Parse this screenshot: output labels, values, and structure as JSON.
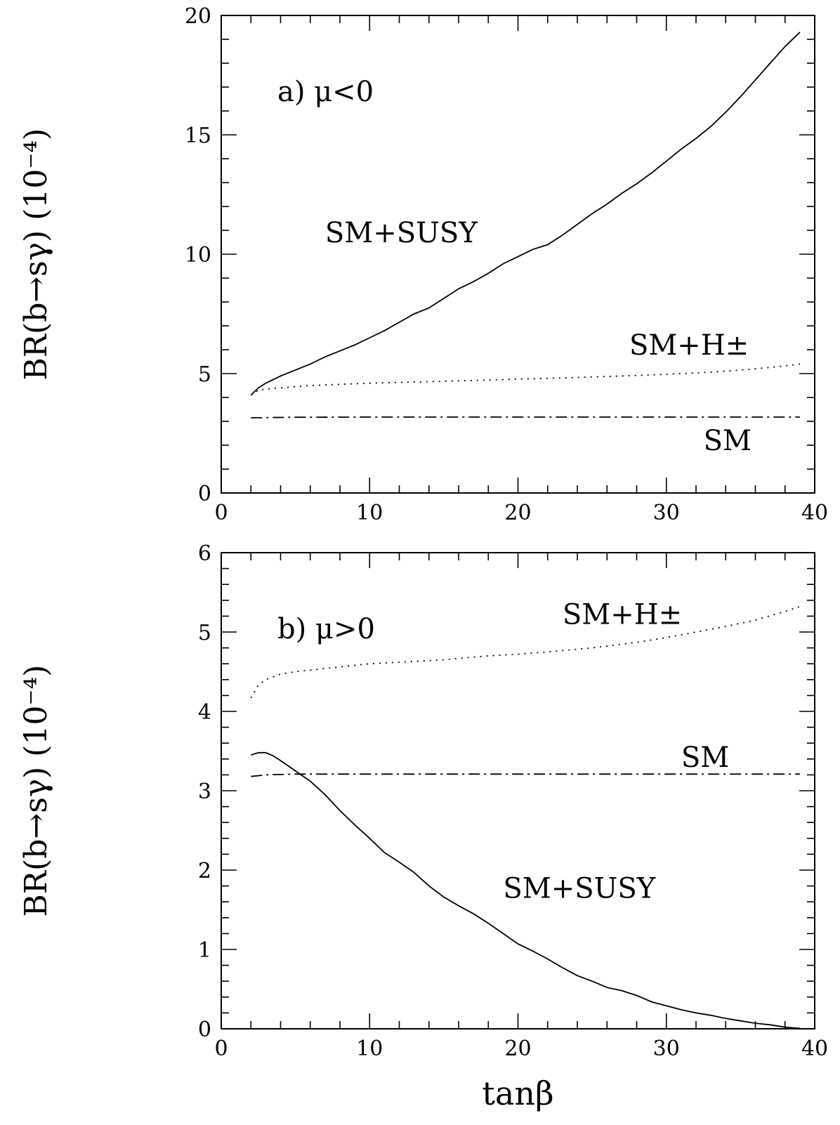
{
  "chart_data": [
    {
      "type": "line",
      "panel_label": "a)  μ<0",
      "ylabel": "BR(b→sγ)  (10⁻⁴)",
      "xlabel": "",
      "xlim": [
        0,
        40
      ],
      "ylim": [
        0,
        20
      ],
      "xticks": [
        0,
        10,
        20,
        30,
        40
      ],
      "yticks": [
        0,
        5,
        10,
        15,
        20
      ],
      "series": [
        {
          "name": "SM+SUSY",
          "style": "solid",
          "x": [
            2,
            2.5,
            3,
            4,
            5,
            6,
            7,
            8,
            9,
            10,
            11,
            12,
            13,
            14,
            15,
            16,
            17,
            18,
            19,
            20,
            21,
            22,
            23,
            24,
            25,
            26,
            27,
            28,
            29,
            30,
            31,
            32,
            33,
            34,
            35,
            36,
            37,
            38,
            39
          ],
          "y": [
            4.1,
            4.4,
            4.6,
            4.9,
            5.15,
            5.4,
            5.7,
            5.95,
            6.2,
            6.5,
            6.8,
            7.15,
            7.5,
            7.75,
            8.15,
            8.55,
            8.85,
            9.2,
            9.6,
            9.9,
            10.2,
            10.4,
            10.8,
            11.25,
            11.7,
            12.1,
            12.55,
            12.95,
            13.4,
            13.9,
            14.4,
            14.85,
            15.35,
            15.95,
            16.6,
            17.3,
            18.0,
            18.7,
            19.3
          ]
        },
        {
          "name": "SM+H±",
          "style": "dotted",
          "x": [
            2,
            2.5,
            3,
            4,
            5,
            6,
            8,
            10,
            12,
            15,
            18,
            20,
            22,
            25,
            28,
            30,
            32,
            34,
            36,
            38,
            39
          ],
          "y": [
            4.1,
            4.3,
            4.35,
            4.4,
            4.45,
            4.5,
            4.55,
            4.6,
            4.63,
            4.68,
            4.73,
            4.77,
            4.8,
            4.86,
            4.92,
            4.97,
            5.03,
            5.1,
            5.2,
            5.32,
            5.4
          ]
        },
        {
          "name": "SM",
          "style": "dashdot",
          "x": [
            2,
            5,
            10,
            20,
            30,
            39
          ],
          "y": [
            3.15,
            3.17,
            3.18,
            3.18,
            3.18,
            3.18
          ]
        }
      ],
      "annotations": [
        {
          "text": "SM+SUSY",
          "x": 7,
          "y": 10.5
        },
        {
          "text": "SM+H±",
          "x": 27.5,
          "y": 5.8
        },
        {
          "text": "SM",
          "x": 32.5,
          "y": 1.8
        }
      ]
    },
    {
      "type": "line",
      "panel_label": "b)  μ>0",
      "ylabel": "BR(b→sγ)  (10⁻⁴)",
      "xlabel": "tanβ",
      "xlim": [
        0,
        40
      ],
      "ylim": [
        0,
        6
      ],
      "xticks": [
        0,
        10,
        20,
        30,
        40
      ],
      "yticks": [
        0,
        1,
        2,
        3,
        4,
        5,
        6
      ],
      "series": [
        {
          "name": "SM+SUSY",
          "style": "solid",
          "x": [
            2,
            2.5,
            3,
            3.5,
            4,
            5,
            6,
            7,
            8,
            9,
            10,
            11,
            12,
            13,
            14,
            15,
            16,
            17,
            18,
            19,
            20,
            21,
            22,
            23,
            24,
            25,
            26,
            27,
            28,
            29,
            30,
            31,
            32,
            33,
            34,
            35,
            36,
            37,
            38,
            39
          ],
          "y": [
            3.45,
            3.48,
            3.48,
            3.44,
            3.38,
            3.25,
            3.12,
            2.95,
            2.75,
            2.57,
            2.4,
            2.22,
            2.1,
            1.97,
            1.8,
            1.66,
            1.55,
            1.45,
            1.33,
            1.2,
            1.07,
            0.98,
            0.88,
            0.77,
            0.67,
            0.6,
            0.52,
            0.48,
            0.42,
            0.34,
            0.29,
            0.24,
            0.2,
            0.17,
            0.13,
            0.1,
            0.07,
            0.05,
            0.02,
            0.005
          ]
        },
        {
          "name": "SM+H±",
          "style": "dotted",
          "x": [
            2,
            2.5,
            3,
            4,
            5,
            6,
            8,
            10,
            12,
            15,
            18,
            20,
            22,
            25,
            28,
            30,
            32,
            34,
            36,
            38,
            39
          ],
          "y": [
            4.17,
            4.33,
            4.4,
            4.47,
            4.5,
            4.52,
            4.56,
            4.6,
            4.62,
            4.65,
            4.7,
            4.72,
            4.75,
            4.8,
            4.87,
            4.93,
            5.0,
            5.07,
            5.15,
            5.26,
            5.32
          ]
        },
        {
          "name": "SM",
          "style": "dashdot",
          "x": [
            2,
            3,
            5,
            10,
            20,
            30,
            39
          ],
          "y": [
            3.18,
            3.2,
            3.21,
            3.21,
            3.21,
            3.21,
            3.21
          ]
        }
      ],
      "annotations": [
        {
          "text": "SM+H±",
          "x": 23,
          "y": 5.1
        },
        {
          "text": "SM",
          "x": 31,
          "y": 3.3
        },
        {
          "text": "SM+SUSY",
          "x": 19,
          "y": 1.65
        }
      ]
    }
  ]
}
